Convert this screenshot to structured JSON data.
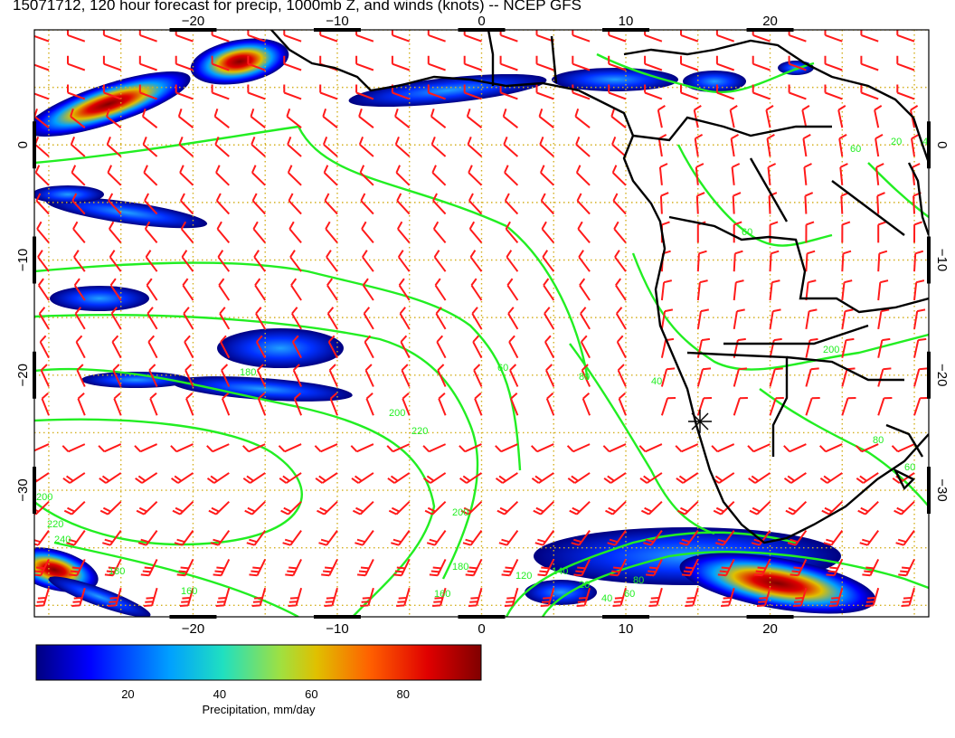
{
  "title": "15071712, 120 hour forecast for precip, 1000mb Z, and winds (knots) -- NCEP GFS",
  "map": {
    "lon_range": [
      -31,
      31
    ],
    "lat_range": [
      -41,
      10
    ],
    "lon_ticks": [
      -20,
      -10,
      0,
      10,
      20
    ],
    "lat_ticks": [
      0,
      -10,
      -20,
      -30
    ],
    "lon_tick_labels": [
      "−20",
      "−10",
      "0",
      "10",
      "20"
    ],
    "lat_tick_labels": [
      "0",
      "−10",
      "−20",
      "−30"
    ],
    "grid": "dotted, every 5 degrees",
    "colors": {
      "contour": "#22ee22",
      "barb": "#ff1a1a",
      "coast": "#000000",
      "grid": "#d4b020"
    },
    "contour_labels": [
      "200",
      "220",
      "240",
      "160",
      "180",
      "180",
      "200",
      "220",
      "60",
      "80",
      "40",
      "60",
      "20",
      "40",
      "60",
      "200",
      "80",
      "60",
      "160",
      "180",
      "200",
      "120",
      "140",
      "20",
      "40",
      "60",
      "80"
    ],
    "marker": "star at about 15E, 23S"
  },
  "colorbar": {
    "label": "Precipitation, mm/day",
    "ticks": [
      "20",
      "40",
      "60",
      "80"
    ],
    "tick_values": [
      20,
      40,
      60,
      80
    ],
    "range": [
      0,
      97
    ],
    "colormap": [
      "#000080",
      "#0000ff",
      "#00a0ff",
      "#20e0c0",
      "#a0e040",
      "#e0c000",
      "#ff6000",
      "#e00000",
      "#800000"
    ]
  }
}
